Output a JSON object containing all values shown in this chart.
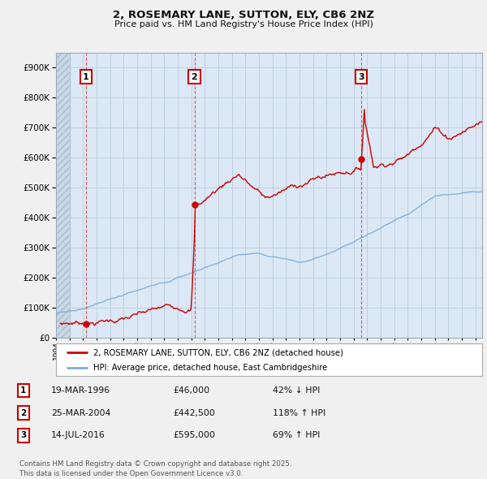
{
  "title": "2, ROSEMARY LANE, SUTTON, ELY, CB6 2NZ",
  "subtitle": "Price paid vs. HM Land Registry's House Price Index (HPI)",
  "red_label": "2, ROSEMARY LANE, SUTTON, ELY, CB6 2NZ (detached house)",
  "blue_label": "HPI: Average price, detached house, East Cambridgeshire",
  "sale_points": [
    {
      "label": "1",
      "date_num": 1996.22,
      "price": 46000
    },
    {
      "label": "2",
      "date_num": 2004.23,
      "price": 442500
    },
    {
      "label": "3",
      "date_num": 2016.54,
      "price": 595000
    }
  ],
  "sale_annotations": [
    {
      "label": "1",
      "date": "19-MAR-1996",
      "price": "£46,000",
      "pct": "42% ↓ HPI"
    },
    {
      "label": "2",
      "date": "25-MAR-2004",
      "price": "£442,500",
      "pct": "118% ↑ HPI"
    },
    {
      "label": "3",
      "date": "14-JUL-2016",
      "price": "£595,000",
      "pct": "69% ↑ HPI"
    }
  ],
  "footer": "Contains HM Land Registry data © Crown copyright and database right 2025.\nThis data is licensed under the Open Government Licence v3.0.",
  "ylim": [
    0,
    950000
  ],
  "xlim_start": 1994.0,
  "xlim_end": 2025.5,
  "bg_color": "#f0f0f0",
  "plot_bg": "#dce8f5",
  "red_color": "#cc0000",
  "blue_color": "#7aadda",
  "grid_color": "#c0d0e0",
  "hatch_color": "#c8d8e8"
}
